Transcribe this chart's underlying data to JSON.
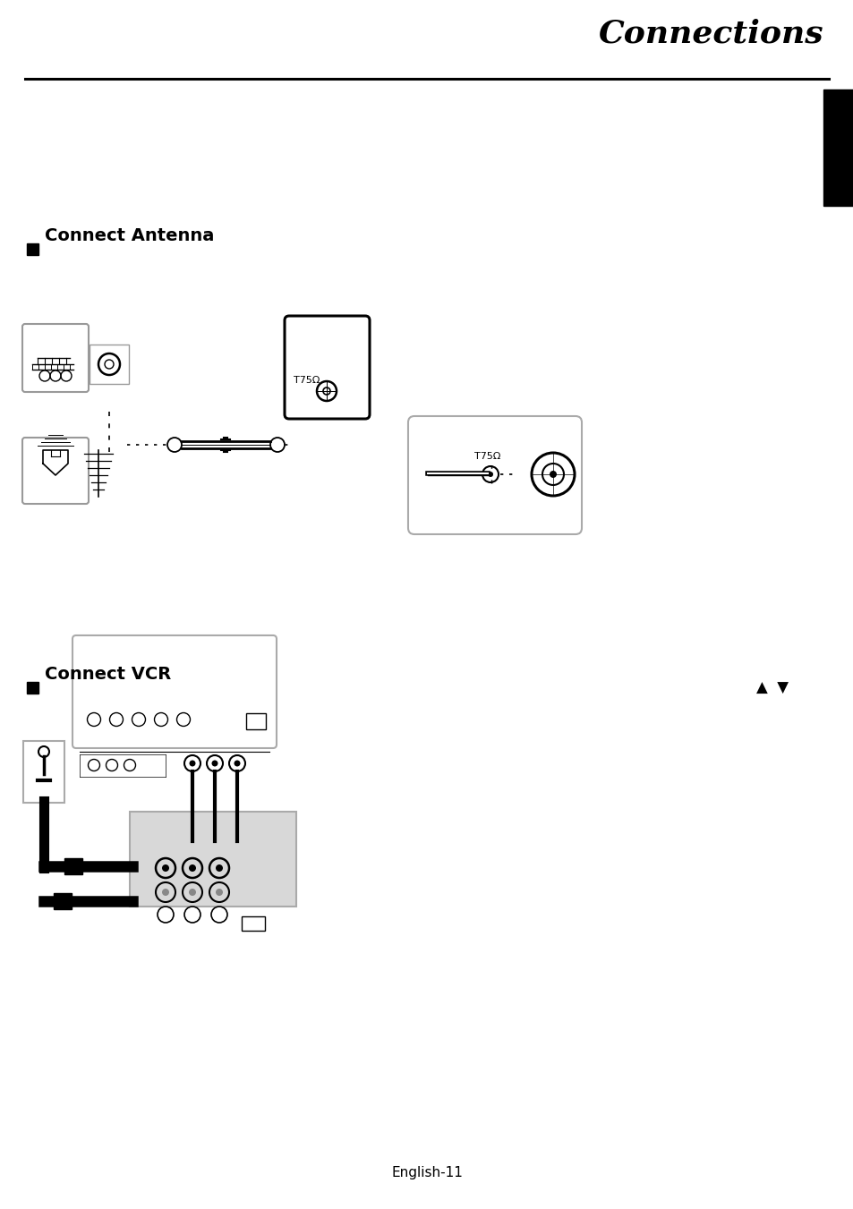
{
  "title": "Connections",
  "section1": "Connect Antenna",
  "section2": "Connect VCR",
  "footer": "English-11",
  "bg_color": "#ffffff",
  "title_fontsize": 24,
  "section_fontsize": 14,
  "footer_fontsize": 11
}
